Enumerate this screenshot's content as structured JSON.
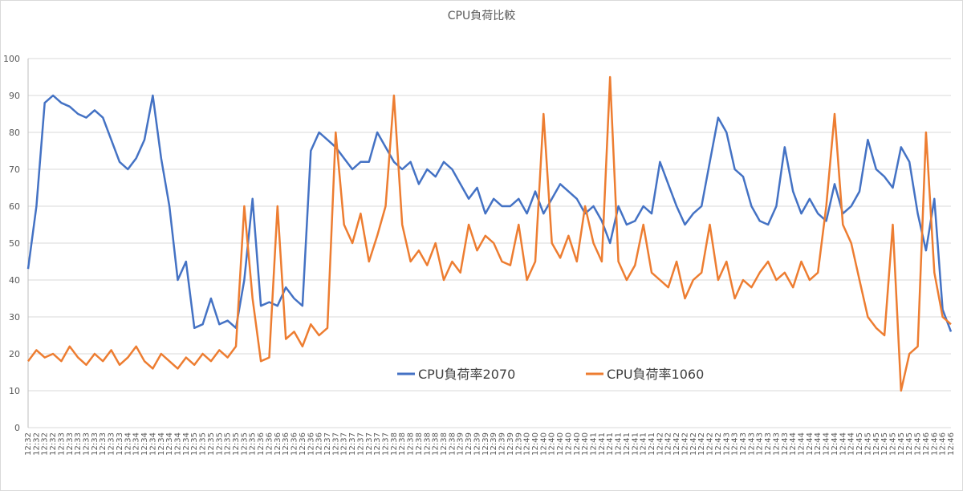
{
  "chart_data": {
    "type": "line",
    "title": "CPU負荷比較",
    "categories": [
      "12:32",
      "12:32",
      "12:32",
      "12:32",
      "12:33",
      "12:33",
      "12:33",
      "12:33",
      "12:33",
      "12:33",
      "12:33",
      "12:33",
      "12:34",
      "12:34",
      "12:34",
      "12:34",
      "12:34",
      "12:34",
      "12:34",
      "12:34",
      "12:35",
      "12:35",
      "12:35",
      "12:35",
      "12:35",
      "12:35",
      "12:35",
      "12:35",
      "12:36",
      "12:36",
      "12:36",
      "12:36",
      "12:36",
      "12:36",
      "12:36",
      "12:36",
      "12:37",
      "12:37",
      "12:37",
      "12:37",
      "12:37",
      "12:37",
      "12:37",
      "12:37",
      "12:38",
      "12:38",
      "12:38",
      "12:38",
      "12:38",
      "12:38",
      "12:38",
      "12:38",
      "12:39",
      "12:39",
      "12:39",
      "12:39",
      "12:39",
      "12:39",
      "12:39",
      "12:39",
      "12:40",
      "12:40",
      "12:40",
      "12:40",
      "12:40",
      "12:40",
      "12:40",
      "12:40",
      "12:41",
      "12:41",
      "12:41",
      "12:41",
      "12:41",
      "12:41",
      "12:41",
      "12:41",
      "12:42",
      "12:42",
      "12:42",
      "12:42",
      "12:42",
      "12:42",
      "12:42",
      "12:42",
      "12:43",
      "12:43",
      "12:43",
      "12:43",
      "12:43",
      "12:43",
      "12:43",
      "12:43",
      "12:44",
      "12:44",
      "12:44",
      "12:44",
      "12:44",
      "12:44",
      "12:44",
      "12:44",
      "12:45",
      "12:45",
      "12:45",
      "12:45",
      "12:45",
      "12:45",
      "12:45",
      "12:45",
      "12:46",
      "12:46",
      "12:46",
      "12:46"
    ],
    "series": [
      {
        "name": "CPU負荷率2070",
        "color": "#4472c4",
        "values": [
          43,
          60,
          88,
          90,
          88,
          87,
          85,
          84,
          86,
          84,
          78,
          72,
          70,
          73,
          78,
          90,
          73,
          60,
          40,
          45,
          27,
          28,
          35,
          28,
          29,
          27,
          40,
          62,
          33,
          34,
          33,
          38,
          35,
          33,
          75,
          80,
          78,
          76,
          73,
          70,
          72,
          72,
          80,
          76,
          72,
          70,
          72,
          66,
          70,
          68,
          72,
          70,
          66,
          62,
          65,
          58,
          62,
          60,
          60,
          62,
          58,
          64,
          58,
          62,
          66,
          64,
          62,
          58,
          60,
          56,
          50,
          60,
          55,
          56,
          60,
          58,
          72,
          66,
          60,
          55,
          58,
          60,
          72,
          84,
          80,
          70,
          68,
          60,
          56,
          55,
          60,
          76,
          64,
          58,
          62,
          58,
          56,
          66,
          58,
          60,
          64,
          78,
          70,
          68,
          65,
          76,
          72,
          58,
          48,
          62,
          32,
          26
        ]
      },
      {
        "name": "CPU負荷率1060",
        "color": "#ed7d31",
        "values": [
          18,
          21,
          19,
          20,
          18,
          22,
          19,
          17,
          20,
          18,
          21,
          17,
          19,
          22,
          18,
          16,
          20,
          18,
          16,
          19,
          17,
          20,
          18,
          21,
          19,
          22,
          60,
          35,
          18,
          19,
          60,
          24,
          26,
          22,
          28,
          25,
          27,
          80,
          55,
          50,
          58,
          45,
          52,
          60,
          90,
          55,
          45,
          48,
          44,
          50,
          40,
          45,
          42,
          55,
          48,
          52,
          50,
          45,
          44,
          55,
          40,
          45,
          85,
          50,
          46,
          52,
          45,
          60,
          50,
          45,
          95,
          45,
          40,
          44,
          55,
          42,
          40,
          38,
          45,
          35,
          40,
          42,
          55,
          40,
          45,
          35,
          40,
          38,
          42,
          45,
          40,
          42,
          38,
          45,
          40,
          42,
          60,
          85,
          55,
          50,
          40,
          30,
          27,
          25,
          55,
          10,
          20,
          22,
          80,
          42,
          30,
          28
        ]
      }
    ],
    "ylim": [
      0,
      100
    ],
    "yticks": [
      0,
      10,
      20,
      30,
      40,
      50,
      60,
      70,
      80,
      90,
      100
    ],
    "grid": true,
    "legend": "inside-bottom"
  }
}
